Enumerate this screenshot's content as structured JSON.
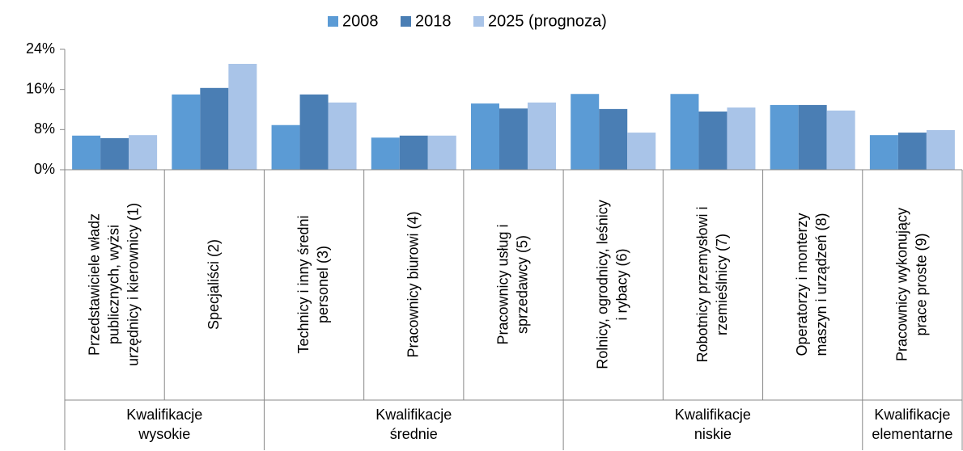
{
  "chart_data": {
    "type": "bar",
    "categories": [
      "Przedstawiciele władz publicznych, wyżsi urzędnicy i kierownicy (1)",
      "Specjaliści (2)",
      "Technicy i inny średni personel (3)",
      "Pracownicy biurowi (4)",
      "Pracownicy usług i sprzedawcy (5)",
      "Rolnicy, ogrodnicy, leśnicy i rybacy (6)",
      "Robotnicy przemysłowi i rzemieślnicy (7)",
      "Operatorzy i monterzy maszyn i urządzeń (8)",
      "Pracownicy wykonujący prace proste (9)"
    ],
    "groups": [
      {
        "name": "Kwalifikacje wysokie",
        "span": 2
      },
      {
        "name": "Kwalifikacje średnie",
        "span": 3
      },
      {
        "name": "Kwalifikacje niskie",
        "span": 3
      },
      {
        "name": "Kwalifikacje elementarne",
        "span": 1
      }
    ],
    "series": [
      {
        "name": "2008",
        "color": "#5b9bd5",
        "values": [
          6.8,
          15.0,
          8.9,
          6.4,
          13.2,
          15.1,
          15.1,
          12.9,
          6.9
        ]
      },
      {
        "name": "2018",
        "color": "#4a7eb4",
        "values": [
          6.3,
          16.3,
          15.0,
          6.8,
          12.2,
          12.1,
          11.6,
          12.9,
          7.4
        ]
      },
      {
        "name": "2025 (prognoza)",
        "color": "#a9c4e8",
        "values": [
          6.9,
          21.1,
          13.4,
          6.8,
          13.4,
          7.4,
          12.4,
          11.8,
          7.9
        ]
      }
    ],
    "ylim": [
      0,
      24
    ],
    "yticks": [
      {
        "value": 0,
        "label": "0%"
      },
      {
        "value": 8,
        "label": "8%"
      },
      {
        "value": 16,
        "label": "16%"
      },
      {
        "value": 24,
        "label": "24%"
      }
    ],
    "grid": false,
    "legend": "top"
  }
}
